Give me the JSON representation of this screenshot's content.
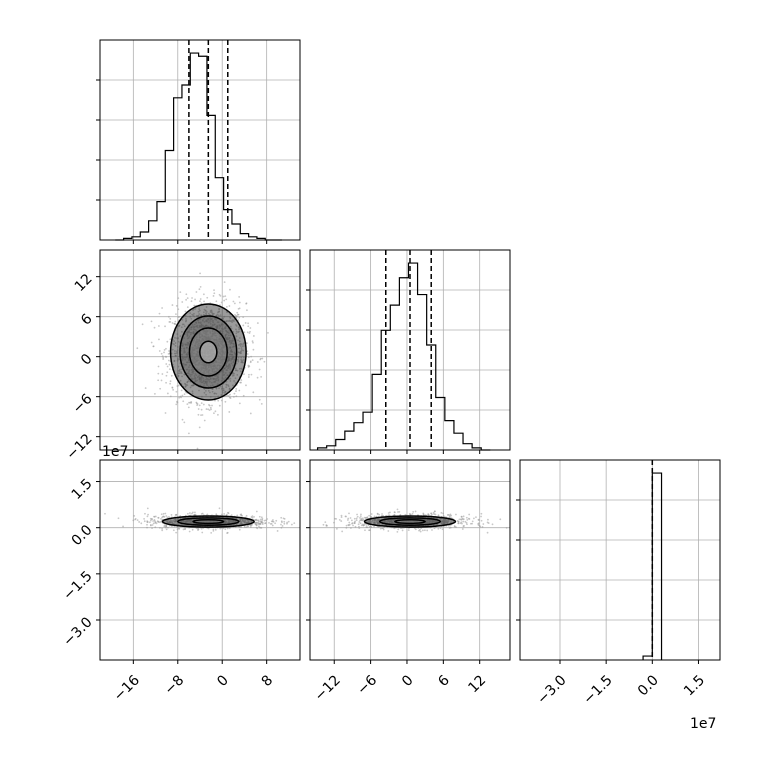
{
  "chart_data": [
    {
      "panel": "var0-marginal",
      "type": "histogram",
      "x": [
        -18.5,
        -17.0,
        -15.5,
        -14.0,
        -12.5,
        -11.0,
        -9.5,
        -8.0,
        -6.5,
        -5.0,
        -3.5,
        -2.0,
        -0.5,
        1.0,
        2.5,
        4.0,
        5.5,
        7.0,
        8.5,
        10.0
      ],
      "values": [
        0,
        1,
        2,
        5,
        12,
        24,
        56,
        89,
        97,
        117,
        115,
        78,
        39,
        19,
        10,
        4,
        2,
        1,
        0,
        0
      ],
      "quantile_lines": [
        -6.0,
        -2.5,
        1.0
      ],
      "xlim": [
        -22,
        14
      ],
      "grid": true
    },
    {
      "panel": "var0-var1-2d",
      "type": "scatter",
      "x_center": -2.5,
      "y_center": 0.7,
      "x_sigma": 3.4,
      "y_sigma": 3.6,
      "contour_levels": [
        "0.5-sigma",
        "1-sigma",
        "1.5-sigma",
        "2-sigma"
      ],
      "xlim": [
        -22,
        14
      ],
      "ylim": [
        -14,
        16
      ],
      "y_ticks": [
        "12",
        "6",
        "0",
        "−6",
        "−12"
      ],
      "grid": true
    },
    {
      "panel": "var1-marginal",
      "type": "histogram",
      "x": [
        -14.0,
        -12.5,
        -11.0,
        -9.5,
        -8.0,
        -6.5,
        -5.0,
        -3.5,
        -2.0,
        -0.5,
        1.0,
        2.5,
        4.0,
        5.5,
        7.0,
        8.5,
        10.0,
        11.5,
        13.0
      ],
      "values": [
        1,
        2,
        5,
        9,
        13,
        18,
        36,
        57,
        69,
        82,
        89,
        74,
        50,
        25,
        14,
        8,
        3,
        1,
        0
      ],
      "quantile_lines": [
        -3.5,
        0.5,
        4.0
      ],
      "xlim": [
        -16,
        17
      ],
      "grid": true
    },
    {
      "panel": "var0-var2-2d",
      "type": "scatter",
      "x_center": -2.5,
      "y_center": 0.2,
      "xlim": [
        -22,
        14
      ],
      "ylim": [
        -4.3,
        2.2
      ],
      "y_ticks": [
        "1.5",
        "0.0",
        "−1.5",
        "−3.0"
      ],
      "y_exponent": "1e7",
      "grid": true
    },
    {
      "panel": "var1-var2-2d",
      "type": "scatter",
      "x_center": 0.5,
      "y_center": 0.2,
      "xlim": [
        -16,
        17
      ],
      "ylim": [
        -4.3,
        2.2
      ],
      "grid": true
    },
    {
      "panel": "var2-marginal",
      "type": "histogram",
      "x": [
        -0.15,
        0.15
      ],
      "values": [
        2,
        95
      ],
      "quantile_lines": [
        0.0
      ],
      "xlim": [
        -4.3,
        2.2
      ],
      "x_ticks": [
        "−3.0",
        "−1.5",
        "0.0",
        "1.5"
      ],
      "x_exponent": "1e7",
      "grid": true
    }
  ],
  "bottom_ticks": {
    "col0": [
      "−16",
      "−8",
      "0",
      "8"
    ],
    "col1": [
      "−12",
      "−6",
      "0",
      "6",
      "12"
    ],
    "col2": [
      "−3.0",
      "−1.5",
      "0.0",
      "1.5"
    ]
  },
  "left_ticks": {
    "row1": [
      "12",
      "6",
      "0",
      "−6",
      "−12"
    ],
    "row2": [
      "1.5",
      "0.0",
      "−1.5",
      "−3.0"
    ]
  },
  "exponents": {
    "row2_y": "1e7",
    "col2_x": "1e7"
  },
  "colors": {
    "line": "#000000",
    "grid": "#b0b0b0",
    "scatter": "#9a9a9a"
  }
}
